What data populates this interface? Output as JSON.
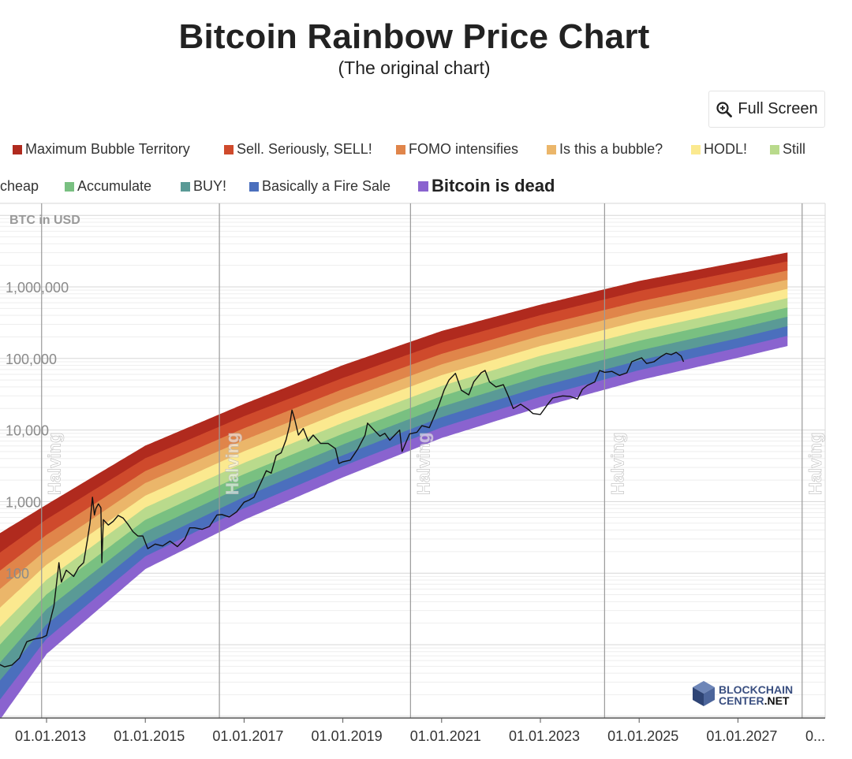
{
  "header": {
    "title": "Bitcoin Rainbow Price Chart",
    "subtitle": "(The original chart)"
  },
  "toolbar": {
    "fullscreen_label": "Full Screen",
    "fullscreen_icon": "zoom-in-icon"
  },
  "watermark": {
    "line1": "BLOCKCHAIN",
    "line2a": "CENTER",
    "line2b": ".NET"
  },
  "legend": [
    {
      "label": "Maximum Bubble Territory",
      "color": "#b02a1e"
    },
    {
      "label": "Sell. Seriously, SELL!",
      "color": "#cf4a2c"
    },
    {
      "label": "FOMO intensifies",
      "color": "#e0854a"
    },
    {
      "label": "Is this a bubble?",
      "color": "#ebb66a"
    },
    {
      "label": "HODL!",
      "color": "#fbe98f"
    },
    {
      "label": "Still",
      "label_cont": "cheap",
      "color": "#b9da8c"
    },
    {
      "label": "Accumulate",
      "color": "#79c081"
    },
    {
      "label": "BUY!",
      "color": "#5a9a96"
    },
    {
      "label": "Basically a Fire Sale",
      "color": "#4b6fbd"
    },
    {
      "label": "Bitcoin is dead",
      "color": "#8a63cf"
    }
  ],
  "chart_data": {
    "type": "line",
    "title": "Bitcoin Rainbow Price Chart",
    "ylabel": "BTC in USD",
    "yscale": "log",
    "ylim": [
      1,
      10000000
    ],
    "y_ticks": [
      {
        "value": 1000000,
        "label": "1,000,000"
      },
      {
        "value": 100000,
        "label": "100,000"
      },
      {
        "value": 10000,
        "label": "10,000"
      },
      {
        "value": 1000,
        "label": "1,000"
      },
      {
        "value": 100,
        "label": "100"
      }
    ],
    "xlim": [
      2012.0,
      2028.0
    ],
    "x_ticks": [
      {
        "value": 2013,
        "label": "01.01.2013"
      },
      {
        "value": 2015,
        "label": "01.01.2015"
      },
      {
        "value": 2017,
        "label": "01.01.2017"
      },
      {
        "value": 2019,
        "label": "01.01.2019"
      },
      {
        "value": 2021,
        "label": "01.01.2021"
      },
      {
        "value": 2023,
        "label": "01.01.2023"
      },
      {
        "value": 2025,
        "label": "01.01.2025"
      },
      {
        "value": 2027,
        "label": "01.01.2027"
      },
      {
        "value": 2029,
        "label": "0..."
      }
    ],
    "halvings": [
      {
        "year": 2012.9,
        "label": "Halving"
      },
      {
        "year": 2016.5,
        "label": "Halving"
      },
      {
        "year": 2020.37,
        "label": "Halving"
      },
      {
        "year": 2024.3,
        "label": "Halving"
      },
      {
        "year": 2028.3,
        "label": "Halving"
      }
    ],
    "bands": [
      {
        "name": "Maximum Bubble Territory",
        "color": "#b02a1e",
        "anchors": [
          [
            2012.0,
            340
          ],
          [
            2013.0,
            900
          ],
          [
            2015.0,
            6000
          ],
          [
            2017.0,
            23000
          ],
          [
            2019.0,
            80000
          ],
          [
            2021.0,
            240000
          ],
          [
            2023.0,
            560000
          ],
          [
            2025.0,
            1200000
          ],
          [
            2027.0,
            2200000
          ],
          [
            2028.0,
            3000000
          ]
        ]
      },
      {
        "name": "Sell. Seriously, SELL!",
        "color": "#cf4a2c",
        "anchors": [
          [
            2012.0,
            180
          ],
          [
            2013.0,
            560
          ],
          [
            2015.0,
            4000
          ],
          [
            2017.0,
            15500
          ],
          [
            2019.0,
            53000
          ],
          [
            2021.0,
            165000
          ],
          [
            2023.0,
            400000
          ],
          [
            2025.0,
            870000
          ],
          [
            2027.0,
            1650000
          ],
          [
            2028.0,
            2250000
          ]
        ]
      },
      {
        "name": "FOMO intensifies",
        "color": "#e0854a",
        "anchors": [
          [
            2012.0,
            100
          ],
          [
            2013.0,
            340
          ],
          [
            2015.0,
            2650
          ],
          [
            2017.0,
            10500
          ],
          [
            2019.0,
            37000
          ],
          [
            2021.0,
            115000
          ],
          [
            2023.0,
            285000
          ],
          [
            2025.0,
            620000
          ],
          [
            2027.0,
            1200000
          ],
          [
            2028.0,
            1680000
          ]
        ]
      },
      {
        "name": "Is this a bubble?",
        "color": "#ebb66a",
        "anchors": [
          [
            2012.0,
            55
          ],
          [
            2013.0,
            210
          ],
          [
            2015.0,
            1800
          ],
          [
            2017.0,
            7200
          ],
          [
            2019.0,
            25500
          ],
          [
            2021.0,
            82000
          ],
          [
            2023.0,
            205000
          ],
          [
            2025.0,
            450000
          ],
          [
            2027.0,
            880000
          ],
          [
            2028.0,
            1250000
          ]
        ]
      },
      {
        "name": "HODL!",
        "color": "#fbe98f",
        "anchors": [
          [
            2012.0,
            30
          ],
          [
            2013.0,
            130
          ],
          [
            2015.0,
            1200
          ],
          [
            2017.0,
            5000
          ],
          [
            2019.0,
            18000
          ],
          [
            2021.0,
            58000
          ],
          [
            2023.0,
            148000
          ],
          [
            2025.0,
            330000
          ],
          [
            2027.0,
            650000
          ],
          [
            2028.0,
            930000
          ]
        ]
      },
      {
        "name": "Still cheap",
        "color": "#b9da8c",
        "anchors": [
          [
            2012.0,
            16
          ],
          [
            2013.0,
            80
          ],
          [
            2015.0,
            820
          ],
          [
            2017.0,
            3450
          ],
          [
            2019.0,
            12500
          ],
          [
            2021.0,
            41000
          ],
          [
            2023.0,
            108000
          ],
          [
            2025.0,
            240000
          ],
          [
            2027.0,
            480000
          ],
          [
            2028.0,
            690000
          ]
        ]
      },
      {
        "name": "Accumulate",
        "color": "#79c081",
        "anchors": [
          [
            2012.0,
            9
          ],
          [
            2013.0,
            50
          ],
          [
            2015.0,
            550
          ],
          [
            2017.0,
            2400
          ],
          [
            2019.0,
            8800
          ],
          [
            2021.0,
            29500
          ],
          [
            2023.0,
            78000
          ],
          [
            2025.0,
            175000
          ],
          [
            2027.0,
            355000
          ],
          [
            2028.0,
            510000
          ]
        ]
      },
      {
        "name": "BUY!",
        "color": "#5a9a96",
        "anchors": [
          [
            2012.0,
            5
          ],
          [
            2013.0,
            31
          ],
          [
            2015.0,
            375
          ],
          [
            2017.0,
            1650
          ],
          [
            2019.0,
            6200
          ],
          [
            2021.0,
            21000
          ],
          [
            2023.0,
            56000
          ],
          [
            2025.0,
            128000
          ],
          [
            2027.0,
            260000
          ],
          [
            2028.0,
            380000
          ]
        ]
      },
      {
        "name": "Basically a Fire Sale",
        "color": "#4b6fbd",
        "anchors": [
          [
            2012.0,
            2.8
          ],
          [
            2013.0,
            19
          ],
          [
            2015.0,
            250
          ],
          [
            2017.0,
            1150
          ],
          [
            2019.0,
            4400
          ],
          [
            2021.0,
            15000
          ],
          [
            2023.0,
            40000
          ],
          [
            2025.0,
            93000
          ],
          [
            2027.0,
            190000
          ],
          [
            2028.0,
            280000
          ]
        ]
      },
      {
        "name": "Bitcoin is dead",
        "color": "#8a63cf",
        "anchors": [
          [
            2012.0,
            1.5
          ],
          [
            2013.0,
            12
          ],
          [
            2015.0,
            170
          ],
          [
            2017.0,
            800
          ],
          [
            2019.0,
            3100
          ],
          [
            2021.0,
            10800
          ],
          [
            2023.0,
            29000
          ],
          [
            2025.0,
            68000
          ],
          [
            2027.0,
            140000
          ],
          [
            2028.0,
            205000
          ]
        ]
      },
      {
        "name": "bottom",
        "color": "none",
        "anchors": [
          [
            2012.0,
            0.8
          ],
          [
            2013.0,
            7.5
          ],
          [
            2015.0,
            115
          ],
          [
            2017.0,
            560
          ],
          [
            2019.0,
            2200
          ],
          [
            2021.0,
            7800
          ],
          [
            2023.0,
            21000
          ],
          [
            2025.0,
            50000
          ],
          [
            2027.0,
            103000
          ],
          [
            2028.0,
            150000
          ]
        ]
      }
    ],
    "price_series": {
      "name": "BTC price",
      "color": "#111111",
      "points": [
        [
          2012.0,
          5.5
        ],
        [
          2012.15,
          4.9
        ],
        [
          2012.3,
          5.2
        ],
        [
          2012.45,
          6.5
        ],
        [
          2012.6,
          11
        ],
        [
          2012.75,
          12
        ],
        [
          2012.9,
          12.5
        ],
        [
          2013.0,
          13.5
        ],
        [
          2013.15,
          35
        ],
        [
          2013.25,
          140
        ],
        [
          2013.3,
          75
        ],
        [
          2013.4,
          110
        ],
        [
          2013.55,
          90
        ],
        [
          2013.65,
          120
        ],
        [
          2013.75,
          140
        ],
        [
          2013.83,
          300
        ],
        [
          2013.88,
          500
        ],
        [
          2013.93,
          1150
        ],
        [
          2013.97,
          650
        ],
        [
          2014.0,
          800
        ],
        [
          2014.05,
          930
        ],
        [
          2014.1,
          820
        ],
        [
          2014.12,
          140
        ],
        [
          2014.15,
          560
        ],
        [
          2014.25,
          470
        ],
        [
          2014.35,
          530
        ],
        [
          2014.45,
          640
        ],
        [
          2014.55,
          590
        ],
        [
          2014.65,
          480
        ],
        [
          2014.75,
          380
        ],
        [
          2014.85,
          330
        ],
        [
          2014.95,
          330
        ],
        [
          2015.05,
          220
        ],
        [
          2015.2,
          255
        ],
        [
          2015.35,
          240
        ],
        [
          2015.5,
          280
        ],
        [
          2015.65,
          235
        ],
        [
          2015.8,
          300
        ],
        [
          2015.9,
          430
        ],
        [
          2016.0,
          430
        ],
        [
          2016.15,
          410
        ],
        [
          2016.3,
          450
        ],
        [
          2016.45,
          650
        ],
        [
          2016.55,
          660
        ],
        [
          2016.7,
          610
        ],
        [
          2016.85,
          720
        ],
        [
          2017.0,
          980
        ],
        [
          2017.1,
          1050
        ],
        [
          2017.2,
          1150
        ],
        [
          2017.35,
          1900
        ],
        [
          2017.45,
          2700
        ],
        [
          2017.55,
          2500
        ],
        [
          2017.65,
          4400
        ],
        [
          2017.75,
          4800
        ],
        [
          2017.85,
          7300
        ],
        [
          2017.92,
          11500
        ],
        [
          2017.97,
          19000
        ],
        [
          2018.02,
          14500
        ],
        [
          2018.1,
          8500
        ],
        [
          2018.2,
          10500
        ],
        [
          2018.3,
          7000
        ],
        [
          2018.4,
          8500
        ],
        [
          2018.55,
          6500
        ],
        [
          2018.7,
          6500
        ],
        [
          2018.85,
          5500
        ],
        [
          2018.92,
          3400
        ],
        [
          2019.0,
          3600
        ],
        [
          2019.15,
          3800
        ],
        [
          2019.3,
          5400
        ],
        [
          2019.45,
          8500
        ],
        [
          2019.5,
          12500
        ],
        [
          2019.6,
          10500
        ],
        [
          2019.75,
          8200
        ],
        [
          2019.85,
          9000
        ],
        [
          2019.95,
          7200
        ],
        [
          2020.05,
          8500
        ],
        [
          2020.15,
          10000
        ],
        [
          2020.2,
          5000
        ],
        [
          2020.35,
          8800
        ],
        [
          2020.5,
          9300
        ],
        [
          2020.6,
          11500
        ],
        [
          2020.75,
          10800
        ],
        [
          2020.85,
          15500
        ],
        [
          2020.95,
          23000
        ],
        [
          2021.05,
          36000
        ],
        [
          2021.15,
          50000
        ],
        [
          2021.28,
          62000
        ],
        [
          2021.4,
          36000
        ],
        [
          2021.55,
          31000
        ],
        [
          2021.65,
          47000
        ],
        [
          2021.8,
          63000
        ],
        [
          2021.88,
          68000
        ],
        [
          2021.97,
          47000
        ],
        [
          2022.1,
          40000
        ],
        [
          2022.25,
          43000
        ],
        [
          2022.35,
          30000
        ],
        [
          2022.45,
          20000
        ],
        [
          2022.6,
          23000
        ],
        [
          2022.75,
          19500
        ],
        [
          2022.85,
          17000
        ],
        [
          2023.0,
          16500
        ],
        [
          2023.15,
          23000
        ],
        [
          2023.25,
          28000
        ],
        [
          2023.45,
          30000
        ],
        [
          2023.6,
          29500
        ],
        [
          2023.75,
          27000
        ],
        [
          2023.85,
          37000
        ],
        [
          2023.95,
          42000
        ],
        [
          2024.1,
          47000
        ],
        [
          2024.2,
          68000
        ],
        [
          2024.3,
          64000
        ],
        [
          2024.45,
          66000
        ],
        [
          2024.6,
          58000
        ],
        [
          2024.75,
          63000
        ],
        [
          2024.85,
          90000
        ],
        [
          2024.95,
          96000
        ],
        [
          2025.05,
          102000
        ],
        [
          2025.15,
          85000
        ],
        [
          2025.3,
          90000
        ],
        [
          2025.45,
          107000
        ],
        [
          2025.55,
          118000
        ],
        [
          2025.65,
          113000
        ],
        [
          2025.75,
          122000
        ],
        [
          2025.85,
          108000
        ],
        [
          2025.9,
          90000
        ]
      ]
    }
  }
}
